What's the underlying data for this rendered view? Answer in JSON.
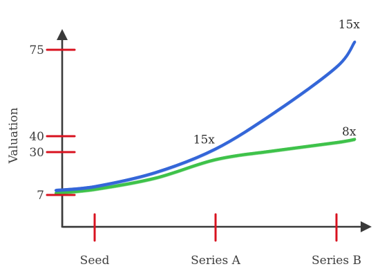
{
  "chart_data": {
    "type": "line",
    "xlabel": "",
    "ylabel": "Valuation",
    "categories": [
      "Seed",
      "Series A",
      "Series B"
    ],
    "yticks": [
      7,
      30,
      40,
      75
    ],
    "ylim": [
      0,
      85
    ],
    "grid": false,
    "legend": "none",
    "series": [
      {
        "color": "#3567d8",
        "x": [
          -0.32,
          0.0,
          0.5,
          1.0,
          1.5,
          2.0,
          2.15
        ],
        "y": [
          9.5,
          11.5,
          19,
          32,
          50,
          68,
          78
        ]
      },
      {
        "color": "#3fc24a",
        "x": [
          -0.32,
          0.0,
          0.5,
          1.0,
          1.5,
          2.0,
          2.15
        ],
        "y": [
          8,
          10,
          16,
          26,
          31,
          36,
          38
        ]
      }
    ],
    "annotations": [
      {
        "text": "15x",
        "x": 2.15,
        "y": 85
      },
      {
        "text": "15x",
        "x": 0.95,
        "y": 38
      },
      {
        "text": "8x",
        "x": 2.15,
        "y": 42
      }
    ]
  },
  "colors": {
    "axis": "#3a3a3a",
    "tick_mark": "#d8121f",
    "text": "#3d3d3d"
  }
}
